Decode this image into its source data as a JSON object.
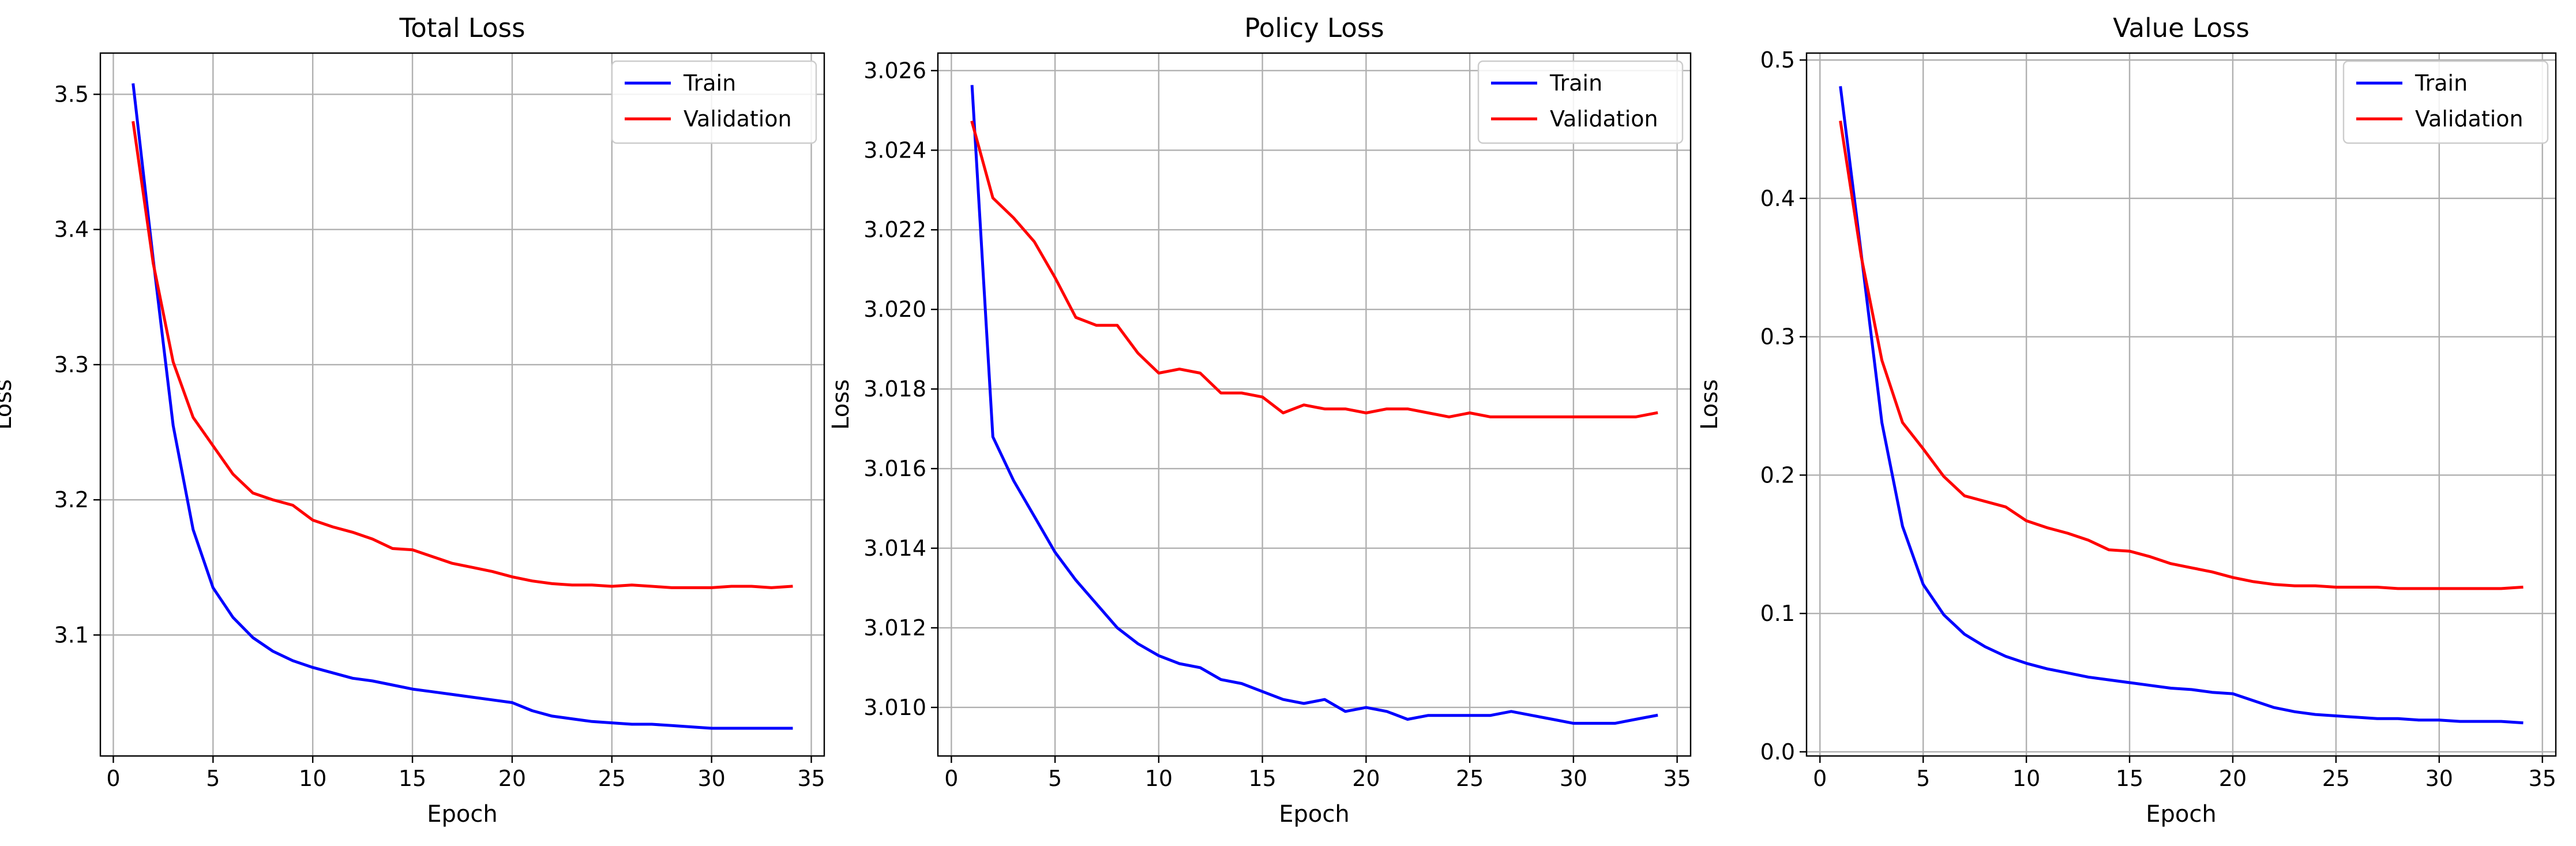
{
  "colors": {
    "train": "#0000ff",
    "validation": "#ff0000",
    "grid": "#b0b0b0",
    "axes": "#000000",
    "legend_border": "#cccccc"
  },
  "chart_data": [
    {
      "type": "line",
      "title": "Total Loss",
      "xlabel": "Epoch",
      "ylabel": "Loss",
      "xlim": [
        -0.65,
        35.65
      ],
      "ylim": [
        3.0105,
        3.5305
      ],
      "xticks": [
        0,
        5,
        10,
        15,
        20,
        25,
        30,
        35
      ],
      "yticks": [
        3.1,
        3.2,
        3.3,
        3.4,
        3.5
      ],
      "ytick_labels": [
        "3.1",
        "3.2",
        "3.3",
        "3.4",
        "3.5"
      ],
      "grid": true,
      "legend": "top-right",
      "x": [
        1,
        2,
        3,
        4,
        5,
        6,
        7,
        8,
        9,
        10,
        11,
        12,
        13,
        14,
        15,
        16,
        17,
        18,
        19,
        20,
        21,
        22,
        23,
        24,
        25,
        26,
        27,
        28,
        29,
        30,
        31,
        32,
        33,
        34
      ],
      "series": [
        {
          "name": "Train",
          "color": "#0000ff",
          "values": [
            3.507,
            3.378,
            3.255,
            3.178,
            3.135,
            3.113,
            3.098,
            3.088,
            3.081,
            3.076,
            3.072,
            3.068,
            3.066,
            3.063,
            3.06,
            3.058,
            3.056,
            3.054,
            3.052,
            3.05,
            3.044,
            3.04,
            3.038,
            3.036,
            3.035,
            3.034,
            3.034,
            3.033,
            3.032,
            3.031,
            3.031,
            3.031,
            3.031,
            3.031
          ]
        },
        {
          "name": "Validation",
          "color": "#ff0000",
          "values": [
            3.479,
            3.375,
            3.302,
            3.261,
            3.24,
            3.219,
            3.205,
            3.2,
            3.196,
            3.185,
            3.18,
            3.176,
            3.171,
            3.164,
            3.163,
            3.158,
            3.153,
            3.15,
            3.147,
            3.143,
            3.14,
            3.138,
            3.137,
            3.137,
            3.136,
            3.137,
            3.136,
            3.135,
            3.135,
            3.135,
            3.136,
            3.136,
            3.135,
            3.136
          ]
        }
      ]
    },
    {
      "type": "line",
      "title": "Policy Loss",
      "xlabel": "Epoch",
      "ylabel": "Loss",
      "xlim": [
        -0.65,
        35.65
      ],
      "ylim": [
        3.00878,
        3.02644
      ],
      "xticks": [
        0,
        5,
        10,
        15,
        20,
        25,
        30,
        35
      ],
      "yticks": [
        3.01,
        3.012,
        3.014,
        3.016,
        3.018,
        3.02,
        3.022,
        3.024,
        3.026
      ],
      "ytick_labels": [
        "3.010",
        "3.012",
        "3.014",
        "3.016",
        "3.018",
        "3.020",
        "3.022",
        "3.024",
        "3.026"
      ],
      "grid": true,
      "legend": "top-right",
      "x": [
        1,
        2,
        3,
        4,
        5,
        6,
        7,
        8,
        9,
        10,
        11,
        12,
        13,
        14,
        15,
        16,
        17,
        18,
        19,
        20,
        21,
        22,
        23,
        24,
        25,
        26,
        27,
        28,
        29,
        30,
        31,
        32,
        33,
        34
      ],
      "series": [
        {
          "name": "Train",
          "color": "#0000ff",
          "values": [
            3.0256,
            3.0168,
            3.0157,
            3.0148,
            3.0139,
            3.0132,
            3.0126,
            3.012,
            3.0116,
            3.0113,
            3.0111,
            3.011,
            3.0107,
            3.0106,
            3.0104,
            3.0102,
            3.0101,
            3.0102,
            3.0099,
            3.01,
            3.0099,
            3.0097,
            3.0098,
            3.0098,
            3.0098,
            3.0098,
            3.0099,
            3.0098,
            3.0097,
            3.0096,
            3.0096,
            3.0096,
            3.0097,
            3.0098
          ]
        },
        {
          "name": "Validation",
          "color": "#ff0000",
          "values": [
            3.0247,
            3.0228,
            3.0223,
            3.0217,
            3.0208,
            3.0198,
            3.0196,
            3.0196,
            3.0189,
            3.0184,
            3.0185,
            3.0184,
            3.0179,
            3.0179,
            3.0178,
            3.0174,
            3.0176,
            3.0175,
            3.0175,
            3.0174,
            3.0175,
            3.0175,
            3.0174,
            3.0173,
            3.0174,
            3.0173,
            3.0173,
            3.0173,
            3.0173,
            3.0173,
            3.0173,
            3.0173,
            3.0173,
            3.0174
          ]
        }
      ]
    },
    {
      "type": "line",
      "title": "Value Loss",
      "xlabel": "Epoch",
      "ylabel": "Loss",
      "xlim": [
        -0.65,
        35.65
      ],
      "ylim": [
        -0.003,
        0.505
      ],
      "xticks": [
        0,
        5,
        10,
        15,
        20,
        25,
        30,
        35
      ],
      "yticks": [
        0.0,
        0.1,
        0.2,
        0.3,
        0.4,
        0.5
      ],
      "ytick_labels": [
        "0.0",
        "0.1",
        "0.2",
        "0.3",
        "0.4",
        "0.5"
      ],
      "grid": true,
      "legend": "top-right",
      "x": [
        1,
        2,
        3,
        4,
        5,
        6,
        7,
        8,
        9,
        10,
        11,
        12,
        13,
        14,
        15,
        16,
        17,
        18,
        19,
        20,
        21,
        22,
        23,
        24,
        25,
        26,
        27,
        28,
        29,
        30,
        31,
        32,
        33,
        34
      ],
      "series": [
        {
          "name": "Train",
          "color": "#0000ff",
          "values": [
            0.48,
            0.36,
            0.238,
            0.163,
            0.121,
            0.099,
            0.085,
            0.076,
            0.069,
            0.064,
            0.06,
            0.057,
            0.054,
            0.052,
            0.05,
            0.048,
            0.046,
            0.045,
            0.043,
            0.042,
            0.037,
            0.032,
            0.029,
            0.027,
            0.026,
            0.025,
            0.024,
            0.024,
            0.023,
            0.023,
            0.022,
            0.022,
            0.022,
            0.021
          ]
        },
        {
          "name": "Validation",
          "color": "#ff0000",
          "values": [
            0.455,
            0.358,
            0.283,
            0.238,
            0.219,
            0.199,
            0.185,
            0.181,
            0.177,
            0.167,
            0.162,
            0.158,
            0.153,
            0.146,
            0.145,
            0.141,
            0.136,
            0.133,
            0.13,
            0.126,
            0.123,
            0.121,
            0.12,
            0.12,
            0.119,
            0.119,
            0.119,
            0.118,
            0.118,
            0.118,
            0.118,
            0.118,
            0.118,
            0.119
          ]
        }
      ]
    }
  ]
}
